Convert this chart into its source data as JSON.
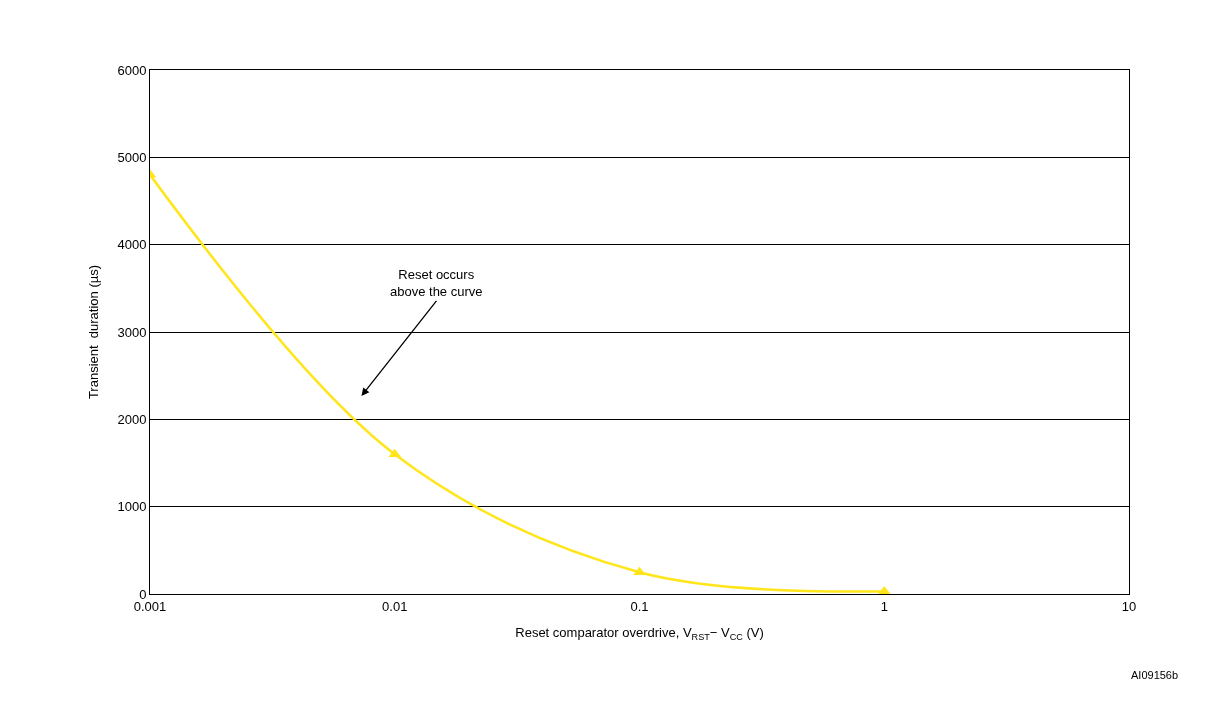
{
  "chart_data": {
    "type": "line",
    "xlabel": "Reset comparator overdrive, V$_{RST}$− V$_{CC}$ (V)",
    "ylabel": "Transient  duration (µs)",
    "x": [
      0.001,
      0.01,
      0.1,
      1
    ],
    "series": [
      {
        "color": "#ffe51a",
        "values": [
          4800,
          1600,
          250,
          30
        ]
      }
    ],
    "log": "x",
    "xlim": [
      0.001,
      10
    ],
    "xticks": [
      0.001,
      0.01,
      0.1,
      1,
      10
    ],
    "ylim": [
      0,
      6000
    ],
    "yticks": [
      0,
      1000,
      2000,
      3000,
      4000,
      5000,
      6000
    ],
    "grid": "y",
    "marker": "triangle",
    "line_style": "solid",
    "annotations": [
      "Reset occurs\nabove the curve",
      "AI09156b"
    ]
  }
}
